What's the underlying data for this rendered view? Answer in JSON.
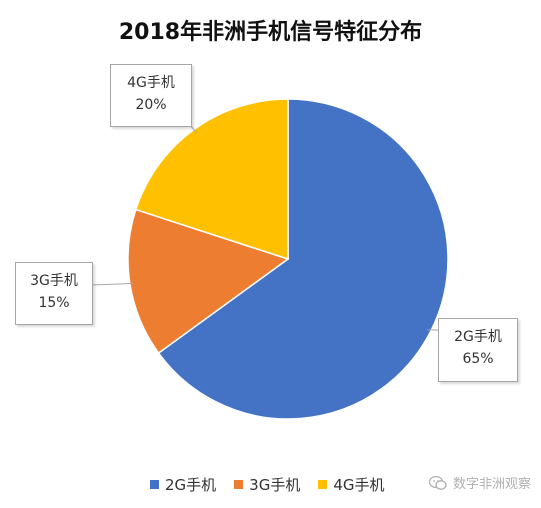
{
  "title": "2018年非洲手机信号特征分布",
  "chart_data": {
    "type": "pie",
    "title": "2018年非洲手机信号特征分布",
    "slices": [
      {
        "label": "2G手机",
        "value": 65,
        "value_label": "65%",
        "color": "#4472C4"
      },
      {
        "label": "3G手机",
        "value": 15,
        "value_label": "15%",
        "color": "#ED7D31"
      },
      {
        "label": "4G手机",
        "value": 20,
        "value_label": "20%",
        "color": "#FFC000"
      }
    ],
    "legend_position": "bottom"
  },
  "watermark": {
    "text": "数字非洲观察",
    "icon": "wechat-icon"
  }
}
